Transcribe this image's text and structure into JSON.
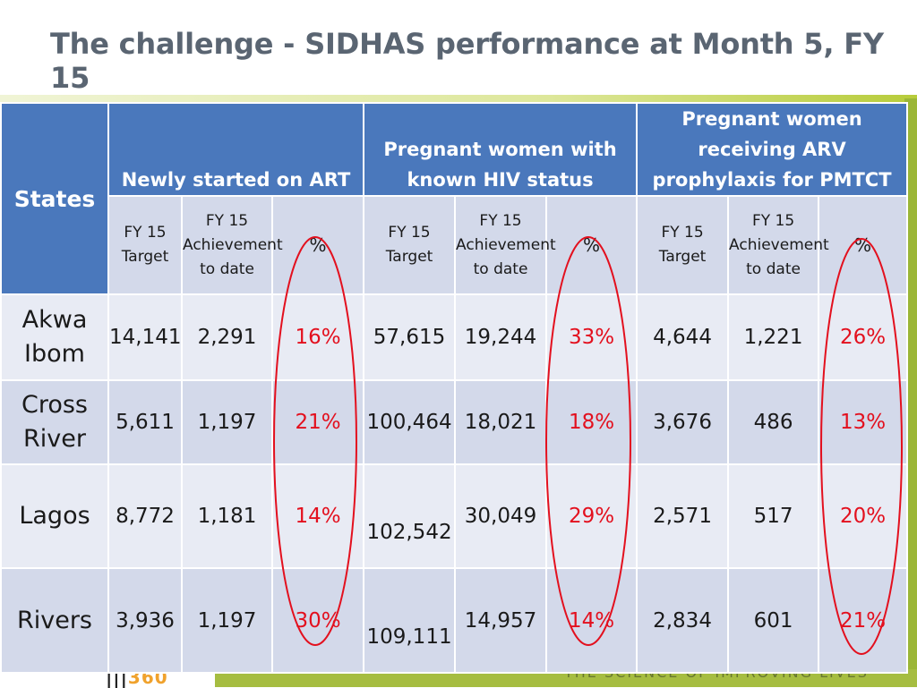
{
  "title": "The challenge - SIDHAS performance at Month 5, FY 15",
  "table": {
    "states_header": "States",
    "groups": [
      "Newly started on ART",
      "Pregnant women with known HIV status",
      "Pregnant women receiving ARV prophylaxis for PMTCT"
    ],
    "sub_headers": {
      "target": "FY 15 Target",
      "achievement": "FY 15 Achievement to date",
      "percent": "%"
    },
    "rows": [
      {
        "state": "Akwa Ibom",
        "values": [
          "14,141",
          "2,291",
          "16%",
          "57,615",
          "19,244",
          "33%",
          "4,644",
          "1,221",
          "26%"
        ]
      },
      {
        "state": "Cross River",
        "values": [
          "5,611",
          "1,197",
          "21%",
          "100,464",
          "18,021",
          "18%",
          "3,676",
          "486",
          "13%"
        ]
      },
      {
        "state": "Lagos",
        "values": [
          "8,772",
          "1,181",
          "14%",
          "102,542",
          "30,049",
          "29%",
          "2,571",
          "517",
          "20%"
        ]
      },
      {
        "state": "Rivers",
        "values": [
          "3,936",
          "1,197",
          "30%",
          "109,111",
          "14,957",
          "14%",
          "2,834",
          "601",
          "21%"
        ]
      }
    ]
  },
  "footer": {
    "logo": "360",
    "tagline": "THE SCIENCE OF IMPROVING LIVES"
  },
  "colors": {
    "header_blue": "#4a78bc",
    "highlight_red": "#e3101e",
    "accent_green": "#9bb637"
  }
}
